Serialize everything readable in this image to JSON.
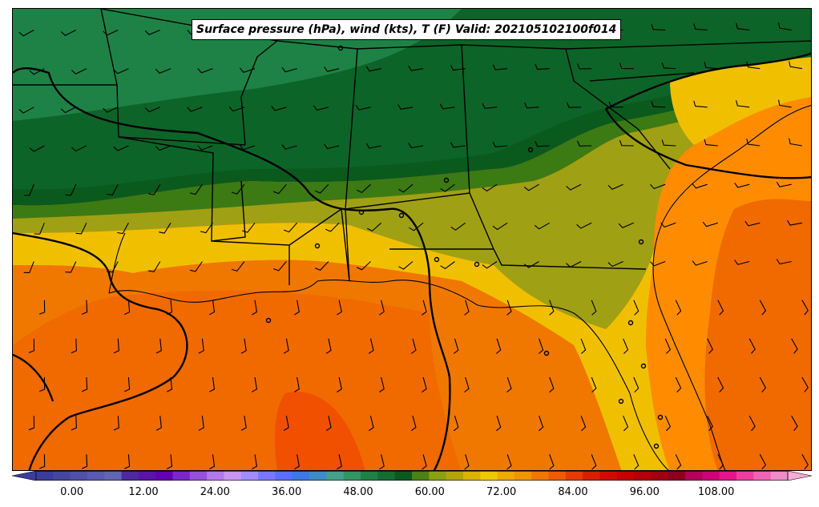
{
  "title": "Surface pressure (hPa), wind (kts), T (F) Valid: 202105102100f014",
  "colorbar": {
    "min": -6,
    "max": 120,
    "step": 3,
    "tick_labels": [
      "0.00",
      "12.00",
      "24.00",
      "36.00",
      "48.00",
      "60.00",
      "72.00",
      "84.00",
      "96.00",
      "108.00"
    ],
    "colors": [
      "#3c3c9c",
      "#46469e",
      "#5050a8",
      "#5a5ab0",
      "#6464b4",
      "#5028a0",
      "#5a14aa",
      "#6400b4",
      "#7828c8",
      "#9650dc",
      "#b478ec",
      "#c896f0",
      "#a08cff",
      "#7878ff",
      "#5a6eff",
      "#3c78e6",
      "#3c8cc8",
      "#46a08c",
      "#329664",
      "#1e8246",
      "#146e32",
      "#0a5a1e",
      "#4b8214",
      "#8ca014",
      "#b4a50a",
      "#dcb400",
      "#f0c800",
      "#f0aa00",
      "#f09600",
      "#f07800",
      "#f05a00",
      "#e63c00",
      "#dc1e00",
      "#d20a00",
      "#c80000",
      "#b4000a",
      "#a00014",
      "#8c001e",
      "#b4005a",
      "#d20078",
      "#e6148c",
      "#f03ca0",
      "#f064b4",
      "#f08cc8"
    ]
  },
  "legend_colors": {
    "deep_green": "#0a5a1e",
    "green": "#1e8246",
    "olive": "#a0a014",
    "yellow": "#f0c000",
    "orange": "#ff8c00",
    "red_orange": "#ff6a00"
  }
}
